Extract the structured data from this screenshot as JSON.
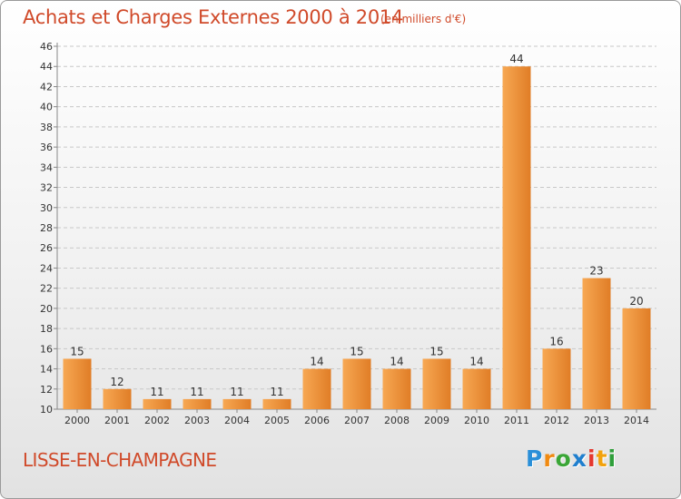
{
  "title": "Achats et Charges Externes 2000 à 2014",
  "subtitle": "(en milliers d'€)",
  "commune": "LISSE-EN-CHAMPAGNE",
  "logo": {
    "text": "Proxiti",
    "letter_colors": [
      "#2a8fd8",
      "#f08a12",
      "#3aa636",
      "#1f7fce",
      "#e5382e",
      "#f2a20c",
      "#2f9f3a"
    ]
  },
  "colors": {
    "bar_light": "#f7a853",
    "bar_dark": "#e07d26",
    "text_accent": "#d04a2a"
  },
  "chart_data": {
    "type": "bar",
    "categories": [
      "2000",
      "2001",
      "2002",
      "2003",
      "2004",
      "2005",
      "2006",
      "2007",
      "2008",
      "2009",
      "2010",
      "2011",
      "2012",
      "2013",
      "2014"
    ],
    "values": [
      15,
      12,
      11,
      11,
      11,
      11,
      14,
      15,
      14,
      15,
      14,
      44,
      16,
      23,
      20
    ],
    "ylim": [
      10,
      46
    ],
    "yticks": [
      10,
      12,
      14,
      16,
      18,
      20,
      22,
      24,
      26,
      28,
      30,
      32,
      34,
      36,
      38,
      40,
      42,
      44,
      46
    ],
    "grid": true,
    "data_labels": true
  }
}
